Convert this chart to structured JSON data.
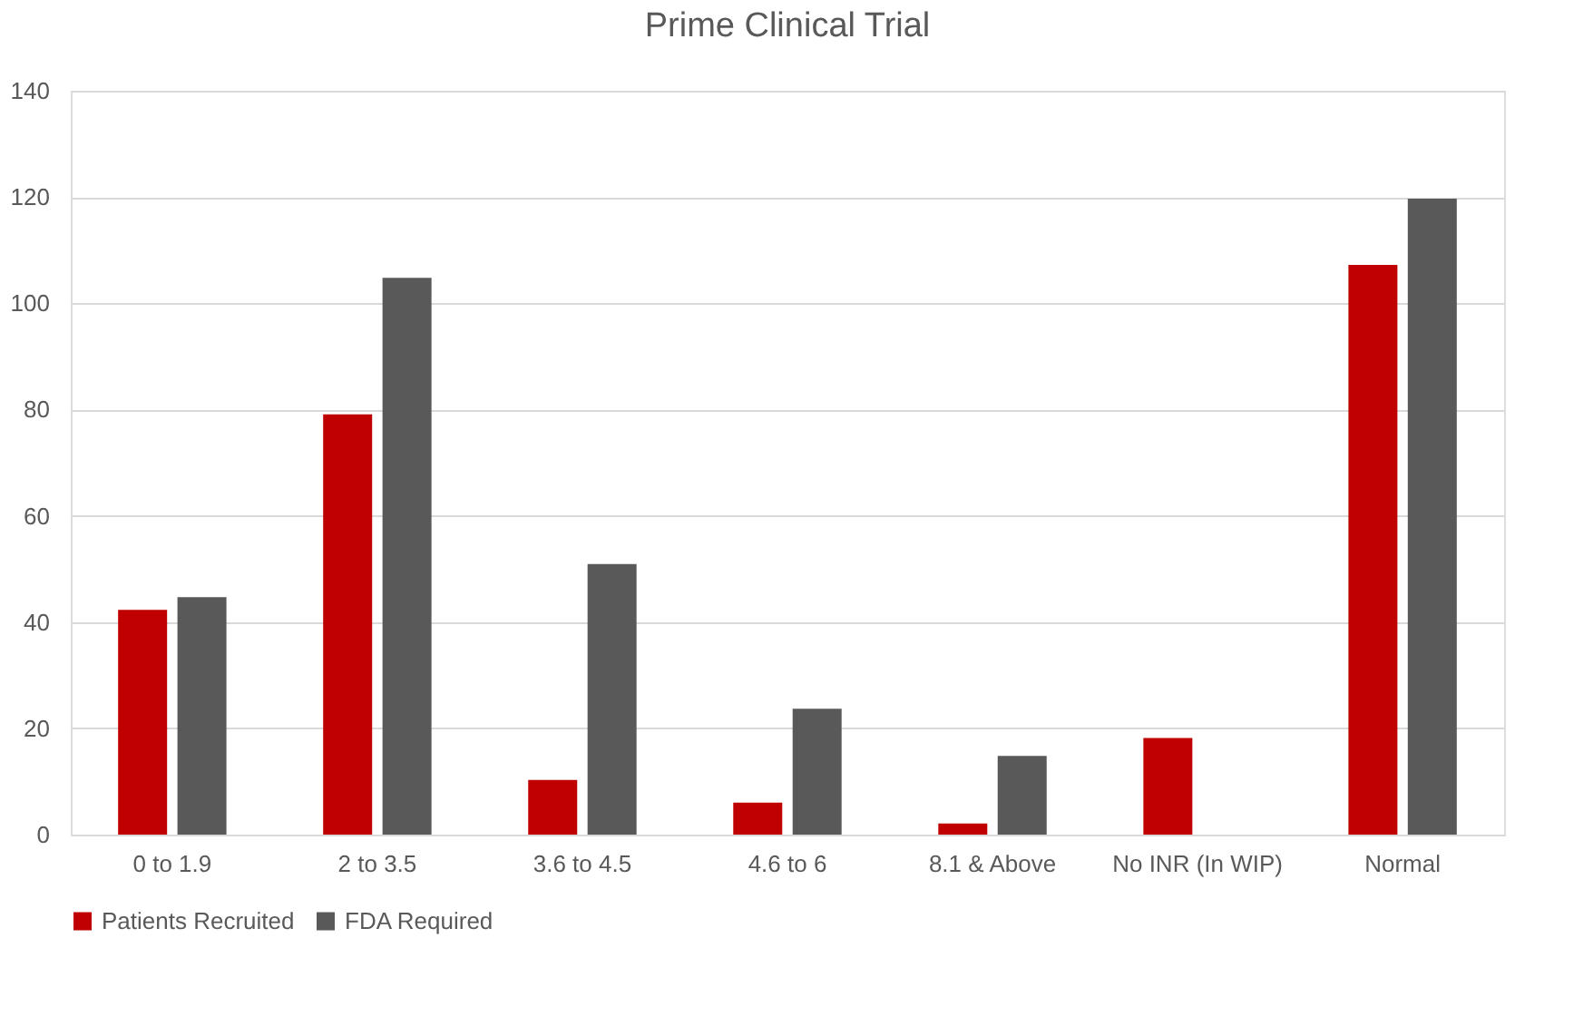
{
  "chart_data": {
    "type": "bar",
    "title": "Prime Clinical Trial",
    "categories": [
      "0 to 1.9",
      "2 to 3.5",
      "3.6 to 4.5",
      "4.6 to 6",
      "8.1 & Above",
      "No INR (In WIP)",
      "Normal"
    ],
    "series": [
      {
        "name": "Patients Recruited",
        "color": "#c00000",
        "values": [
          42.3,
          79.1,
          10.3,
          6.0,
          2.1,
          18.2,
          107.2
        ]
      },
      {
        "name": "FDA Required",
        "color": "#595959",
        "values": [
          44.7,
          104.8,
          50.9,
          23.7,
          14.8,
          null,
          119.7
        ]
      }
    ],
    "ylim": [
      0,
      140
    ],
    "yticks": [
      0,
      20,
      40,
      60,
      80,
      100,
      120,
      140
    ],
    "grid": "y",
    "legend": "bottom"
  }
}
